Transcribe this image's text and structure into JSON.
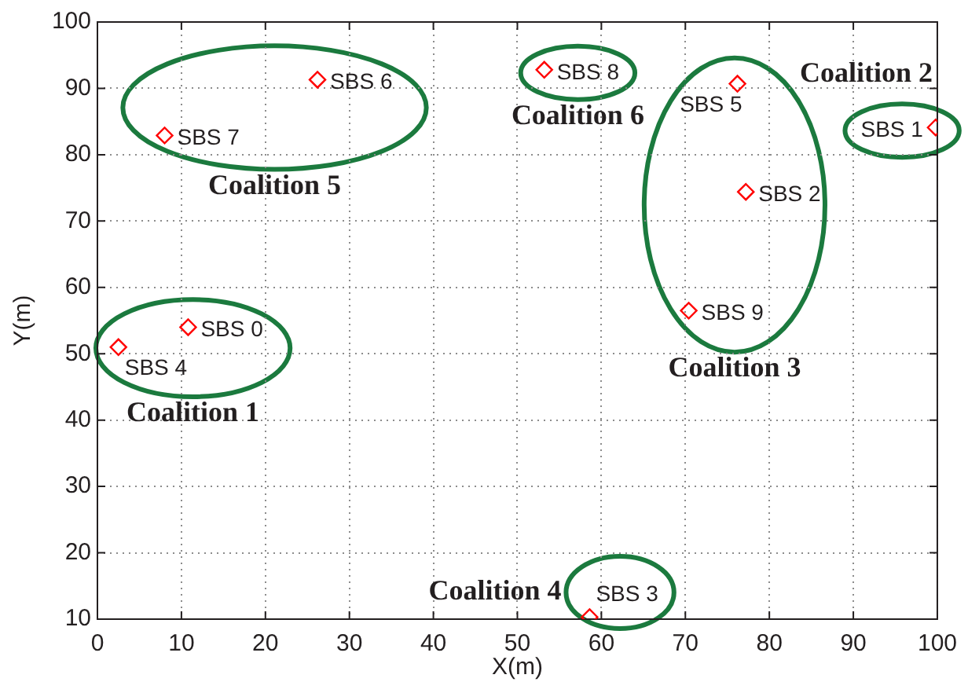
{
  "chart_data": {
    "type": "scatter",
    "xlabel": "X(m)",
    "ylabel": "Y(m)",
    "xlim": [
      0,
      100
    ],
    "ylim": [
      10,
      100
    ],
    "xticks": [
      0,
      10,
      20,
      30,
      40,
      50,
      60,
      70,
      80,
      90,
      100
    ],
    "yticks": [
      10,
      20,
      30,
      40,
      50,
      60,
      70,
      80,
      90,
      100
    ],
    "grid": true,
    "marker": "diamond",
    "series": [
      {
        "name": "Coalition 1",
        "color": "#ff0000",
        "x": [
          10.8,
          2.5
        ],
        "values": [
          54.0,
          51.0
        ],
        "value_labels": [
          "SBS 0",
          "SBS 4"
        ]
      },
      {
        "name": "Coalition 2",
        "color": "#ff0000",
        "x": [
          99.8
        ],
        "values": [
          84.1
        ],
        "value_labels": [
          "SBS 1"
        ]
      },
      {
        "name": "Coalition 3",
        "color": "#ff0000",
        "x": [
          77.2,
          76.2,
          70.4
        ],
        "values": [
          74.4,
          90.7,
          56.5
        ],
        "value_labels": [
          "SBS 2",
          "SBS 5",
          "SBS 9"
        ]
      },
      {
        "name": "Coalition 4",
        "color": "#ff0000",
        "x": [
          58.6
        ],
        "values": [
          10.3
        ],
        "value_labels": [
          "SBS 3"
        ]
      },
      {
        "name": "Coalition 5",
        "color": "#ff0000",
        "x": [
          26.2,
          8.0
        ],
        "values": [
          91.3,
          82.9
        ],
        "value_labels": [
          "SBS 6",
          "SBS 7"
        ]
      },
      {
        "name": "Coalition 6",
        "color": "#ff0000",
        "x": [
          53.2
        ],
        "values": [
          92.8
        ],
        "value_labels": [
          "SBS 8"
        ]
      }
    ]
  }
}
